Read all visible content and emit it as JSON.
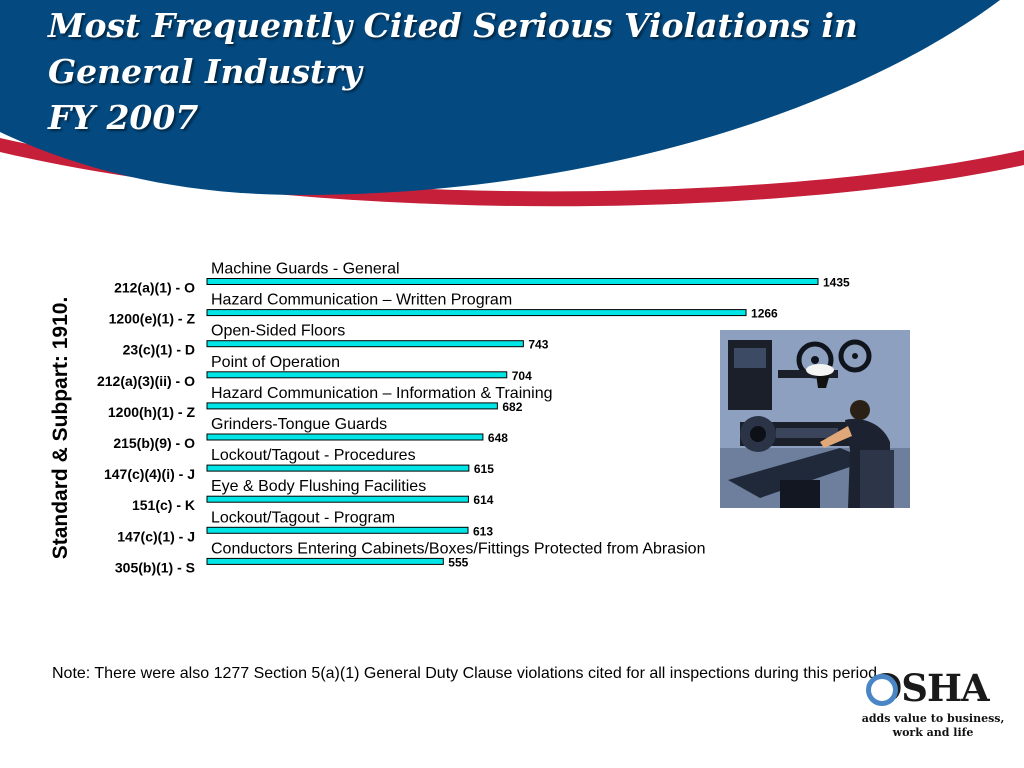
{
  "header": {
    "title_lines": [
      "Most Frequently Cited Serious Violations in",
      "General Industry",
      "FY 2007"
    ],
    "colors": {
      "blue": "#044a80",
      "red": "#c51f3a",
      "white": "#ffffff"
    }
  },
  "chart_data": {
    "type": "bar",
    "orientation": "horizontal",
    "categories": [
      "212(a)(1) - O",
      "1200(e)(1) - Z",
      "23(c)(1) - D",
      "212(a)(3)(ii) - O",
      "1200(h)(1) - Z",
      "215(b)(9) - O",
      "147(c)(4)(i) - J",
      "151(c) - K",
      "147(c)(1) - J",
      "305(b)(1) - S"
    ],
    "descriptions": [
      "Machine Guards - General",
      "Hazard Communication – Written Program",
      "Open-Sided Floors",
      "Point of Operation",
      "Hazard Communication – Information & Training",
      "Grinders-Tongue Guards",
      "Lockout/Tagout - Procedures",
      "Eye & Body Flushing Facilities",
      "Lockout/Tagout - Program",
      "Conductors Entering Cabinets/Boxes/Fittings Protected from Abrasion"
    ],
    "values": [
      1435,
      1266,
      743,
      704,
      682,
      648,
      615,
      614,
      613,
      555
    ],
    "ylabel": "Standard & Subpart:  1910.",
    "xlabel": "",
    "bar_color": "#00e6e6",
    "grid": false,
    "legend": "none"
  },
  "note": "Note: There were also 1277 Section 5(a)(1) General Duty Clause violations cited for all inspections during this period.",
  "logo": {
    "word": "OSHA",
    "tagline_lines": [
      "adds value to business,",
      "work and life"
    ]
  }
}
